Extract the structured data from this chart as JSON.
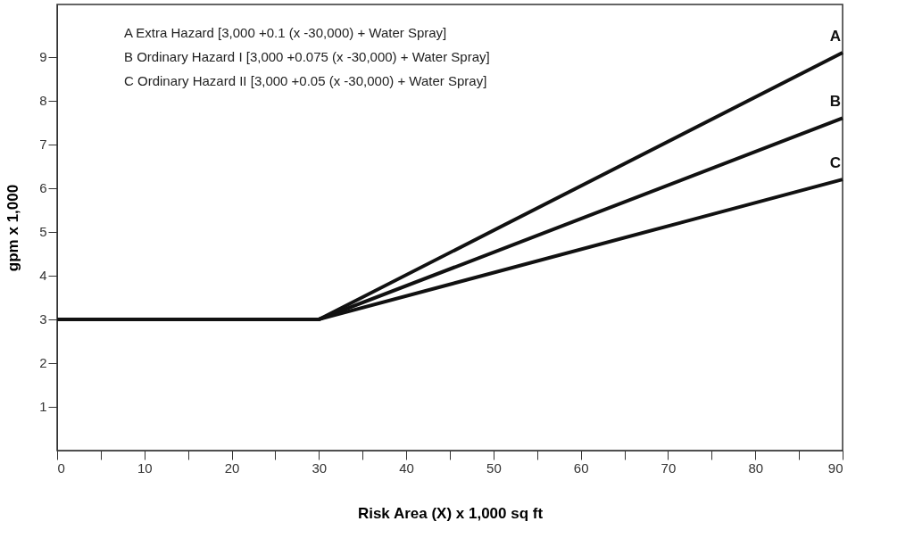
{
  "chart_data": {
    "type": "line",
    "xlabel": "Risk Area (X) x 1,000 sq ft",
    "ylabel": "gpm x 1,000",
    "xlim": [
      0,
      90
    ],
    "ylim": [
      0,
      10.2
    ],
    "xticks": [
      0,
      {
        "value": 5,
        "label": null
      },
      10,
      {
        "value": 15,
        "label": null
      },
      20,
      {
        "value": 25,
        "label": null
      },
      30,
      {
        "value": 35,
        "label": null
      },
      40,
      {
        "value": 45,
        "label": null
      },
      50,
      {
        "value": 55,
        "label": null
      },
      60,
      {
        "value": 65,
        "label": null
      },
      70,
      {
        "value": 75,
        "label": null
      },
      80,
      {
        "value": 85,
        "label": null
      },
      90
    ],
    "yticks": [
      1,
      2,
      3,
      4,
      5,
      6,
      7,
      8,
      9
    ],
    "grid": false,
    "line_style": "solid",
    "marker": "none",
    "series": [
      {
        "name": "A",
        "color": "#111111",
        "x": [
          0,
          30,
          90
        ],
        "values": [
          3,
          3,
          9.1
        ]
      },
      {
        "name": "B",
        "color": "#111111",
        "x": [
          0,
          30,
          90
        ],
        "values": [
          3,
          3,
          7.6
        ]
      },
      {
        "name": "C",
        "color": "#111111",
        "x": [
          0,
          30,
          90
        ],
        "values": [
          3,
          3,
          6.2
        ]
      }
    ],
    "annotations": [
      "A     Extra Hazard               [3,000 +0.1 (x -30,000) + Water Spray]",
      "B     Ordinary Hazard I        [3,000 +0.075 (x -30,000) + Water Spray]",
      "C     Ordinary Hazard II       [3,000 +0.05 (x -30,000) + Water Spray]"
    ]
  }
}
